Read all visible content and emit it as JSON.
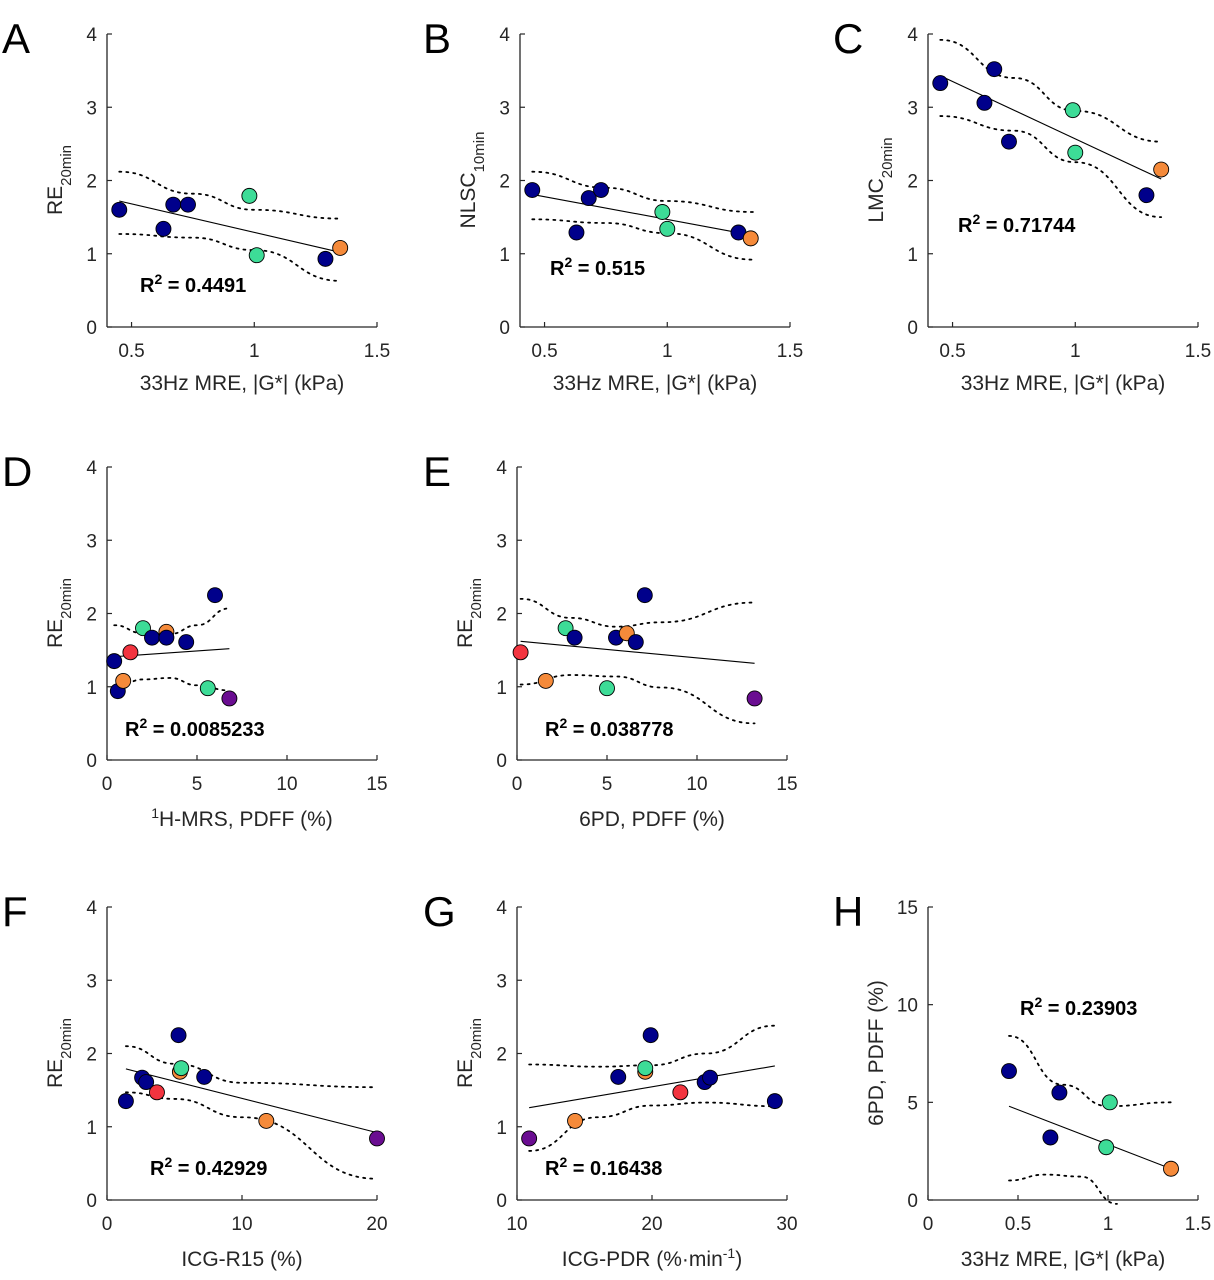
{
  "colors": {
    "blue": "#00008b",
    "green": "#3ddc97",
    "orange": "#f58a3a",
    "red": "#f2343f",
    "purple": "#6a0d91",
    "axis": "#262626",
    "fit": "#000000"
  },
  "chart_data": [
    {
      "type": "scatter",
      "panel": "A",
      "ylabel_main": "RE",
      "ylabel_sub": "20min",
      "xlabel": "33Hz MRE, |G*| (kPa)",
      "xlim": [
        0.4,
        1.5
      ],
      "ylim": [
        0,
        4
      ],
      "xticks": [
        "0.5",
        "1",
        "1.5"
      ],
      "yticks": [
        "0",
        "1",
        "2",
        "3",
        "4"
      ],
      "xtick_values": [
        0.5,
        1,
        1.5
      ],
      "ytick_values": [
        0,
        1,
        2,
        3,
        4
      ],
      "points": [
        {
          "x": 0.45,
          "y": 1.6,
          "c": "blue"
        },
        {
          "x": 0.63,
          "y": 1.34,
          "c": "blue"
        },
        {
          "x": 0.67,
          "y": 1.67,
          "c": "blue"
        },
        {
          "x": 0.73,
          "y": 1.67,
          "c": "blue"
        },
        {
          "x": 0.98,
          "y": 1.79,
          "c": "green"
        },
        {
          "x": 1.01,
          "y": 0.98,
          "c": "green"
        },
        {
          "x": 1.29,
          "y": 0.93,
          "c": "blue"
        },
        {
          "x": 1.35,
          "y": 1.08,
          "c": "orange"
        }
      ],
      "fit": [
        [
          0.45,
          1.72
        ],
        [
          1.35,
          1.02
        ]
      ],
      "ci_upper": [
        [
          0.45,
          2.12
        ],
        [
          0.75,
          1.82
        ],
        [
          1.0,
          1.6
        ],
        [
          1.35,
          1.48
        ]
      ],
      "ci_lower": [
        [
          0.45,
          1.27
        ],
        [
          0.75,
          1.22
        ],
        [
          1.0,
          1.05
        ],
        [
          1.35,
          0.63
        ]
      ],
      "r2_prefix": "R",
      "r2_exp": "2",
      "r2_value": " = 0.4491"
    },
    {
      "type": "scatter",
      "panel": "B",
      "ylabel_main": "NLSC",
      "ylabel_sub": "10min",
      "xlabel": "33Hz MRE, |G*| (kPa)",
      "xlim": [
        0.4,
        1.5
      ],
      "ylim": [
        0,
        4
      ],
      "xticks": [
        "0.5",
        "1",
        "1.5"
      ],
      "yticks": [
        "0",
        "1",
        "2",
        "3",
        "4"
      ],
      "xtick_values": [
        0.5,
        1,
        1.5
      ],
      "ytick_values": [
        0,
        1,
        2,
        3,
        4
      ],
      "points": [
        {
          "x": 0.45,
          "y": 1.87,
          "c": "blue"
        },
        {
          "x": 0.63,
          "y": 1.29,
          "c": "blue"
        },
        {
          "x": 0.68,
          "y": 1.76,
          "c": "blue"
        },
        {
          "x": 0.73,
          "y": 1.87,
          "c": "blue"
        },
        {
          "x": 0.98,
          "y": 1.57,
          "c": "green"
        },
        {
          "x": 1.0,
          "y": 1.34,
          "c": "green"
        },
        {
          "x": 1.29,
          "y": 1.29,
          "c": "blue"
        },
        {
          "x": 1.34,
          "y": 1.21,
          "c": "orange"
        }
      ],
      "fit": [
        [
          0.45,
          1.81
        ],
        [
          1.35,
          1.25
        ]
      ],
      "ci_upper": [
        [
          0.45,
          2.12
        ],
        [
          0.75,
          1.9
        ],
        [
          1.0,
          1.72
        ],
        [
          1.35,
          1.57
        ]
      ],
      "ci_lower": [
        [
          0.45,
          1.47
        ],
        [
          0.75,
          1.42
        ],
        [
          1.0,
          1.28
        ],
        [
          1.35,
          0.92
        ]
      ],
      "r2_prefix": "R",
      "r2_exp": "2",
      "r2_value": " = 0.515"
    },
    {
      "type": "scatter",
      "panel": "C",
      "ylabel_main": "LMC",
      "ylabel_sub": "20min",
      "xlabel": "33Hz MRE, |G*| (kPa)",
      "xlim": [
        0.4,
        1.5
      ],
      "ylim": [
        0,
        4
      ],
      "xticks": [
        "0.5",
        "1",
        "1.5"
      ],
      "yticks": [
        "0",
        "1",
        "2",
        "3",
        "4"
      ],
      "xtick_values": [
        0.5,
        1,
        1.5
      ],
      "ytick_values": [
        0,
        1,
        2,
        3,
        4
      ],
      "points": [
        {
          "x": 0.45,
          "y": 3.33,
          "c": "blue"
        },
        {
          "x": 0.63,
          "y": 3.06,
          "c": "blue"
        },
        {
          "x": 0.67,
          "y": 3.52,
          "c": "blue"
        },
        {
          "x": 0.73,
          "y": 2.53,
          "c": "blue"
        },
        {
          "x": 0.99,
          "y": 2.96,
          "c": "green"
        },
        {
          "x": 1.0,
          "y": 2.38,
          "c": "green"
        },
        {
          "x": 1.29,
          "y": 1.8,
          "c": "blue"
        },
        {
          "x": 1.35,
          "y": 2.15,
          "c": "orange"
        }
      ],
      "fit": [
        [
          0.45,
          3.43
        ],
        [
          1.35,
          2.02
        ]
      ],
      "ci_upper": [
        [
          0.45,
          3.92
        ],
        [
          0.75,
          3.4
        ],
        [
          1.0,
          2.95
        ],
        [
          1.35,
          2.53
        ]
      ],
      "ci_lower": [
        [
          0.45,
          2.88
        ],
        [
          0.75,
          2.68
        ],
        [
          1.0,
          2.25
        ],
        [
          1.35,
          1.5
        ]
      ],
      "r2_prefix": "R",
      "r2_exp": "2",
      "r2_value": " = 0.71744"
    },
    {
      "type": "scatter",
      "panel": "D",
      "ylabel_main": "RE",
      "ylabel_sub": "20min",
      "xlabel_sup": "1",
      "xlabel": "H-MRS, PDFF (%)",
      "xlim": [
        0,
        15
      ],
      "ylim": [
        0,
        4
      ],
      "xticks": [
        "0",
        "5",
        "10",
        "15"
      ],
      "yticks": [
        "0",
        "1",
        "2",
        "3",
        "4"
      ],
      "xtick_values": [
        0,
        5,
        10,
        15
      ],
      "ytick_values": [
        0,
        1,
        2,
        3,
        4
      ],
      "points": [
        {
          "x": 0.4,
          "y": 1.35,
          "c": "blue"
        },
        {
          "x": 0.6,
          "y": 0.94,
          "c": "blue"
        },
        {
          "x": 0.9,
          "y": 1.08,
          "c": "orange"
        },
        {
          "x": 1.3,
          "y": 1.47,
          "c": "red"
        },
        {
          "x": 2.0,
          "y": 1.8,
          "c": "green"
        },
        {
          "x": 2.5,
          "y": 1.67,
          "c": "blue"
        },
        {
          "x": 3.3,
          "y": 1.75,
          "c": "orange"
        },
        {
          "x": 3.3,
          "y": 1.67,
          "c": "blue"
        },
        {
          "x": 4.4,
          "y": 1.61,
          "c": "blue"
        },
        {
          "x": 5.6,
          "y": 0.98,
          "c": "green"
        },
        {
          "x": 6.0,
          "y": 2.25,
          "c": "blue"
        },
        {
          "x": 6.8,
          "y": 0.84,
          "c": "purple"
        }
      ],
      "fit": [
        [
          0.4,
          1.41
        ],
        [
          6.8,
          1.52
        ]
      ],
      "ci_upper": [
        [
          0.4,
          1.84
        ],
        [
          2.0,
          1.73
        ],
        [
          3.5,
          1.72
        ],
        [
          5.0,
          1.84
        ],
        [
          6.8,
          2.07
        ]
      ],
      "ci_lower": [
        [
          0.4,
          0.98
        ],
        [
          2.0,
          1.1
        ],
        [
          3.5,
          1.12
        ],
        [
          5.0,
          1.02
        ],
        [
          6.8,
          0.95
        ]
      ],
      "r2_prefix": "R",
      "r2_exp": "2",
      "r2_value": " = 0.0085233"
    },
    {
      "type": "scatter",
      "panel": "E",
      "ylabel_main": "RE",
      "ylabel_sub": "20min",
      "xlabel": "6PD, PDFF (%)",
      "xlim": [
        0,
        15
      ],
      "ylim": [
        0,
        4
      ],
      "xticks": [
        "0",
        "5",
        "10",
        "15"
      ],
      "yticks": [
        "0",
        "1",
        "2",
        "3",
        "4"
      ],
      "xtick_values": [
        0,
        5,
        10,
        15
      ],
      "ytick_values": [
        0,
        1,
        2,
        3,
        4
      ],
      "points": [
        {
          "x": 0.2,
          "y": 1.47,
          "c": "red"
        },
        {
          "x": 1.6,
          "y": 1.08,
          "c": "orange"
        },
        {
          "x": 2.7,
          "y": 1.8,
          "c": "green"
        },
        {
          "x": 3.2,
          "y": 1.67,
          "c": "blue"
        },
        {
          "x": 5.0,
          "y": 0.98,
          "c": "green"
        },
        {
          "x": 5.5,
          "y": 1.67,
          "c": "blue"
        },
        {
          "x": 6.1,
          "y": 1.73,
          "c": "orange"
        },
        {
          "x": 6.6,
          "y": 1.61,
          "c": "blue"
        },
        {
          "x": 7.1,
          "y": 2.25,
          "c": "blue"
        },
        {
          "x": 13.2,
          "y": 0.84,
          "c": "purple"
        }
      ],
      "fit": [
        [
          0.2,
          1.62
        ],
        [
          13.2,
          1.32
        ]
      ],
      "ci_upper": [
        [
          0.2,
          2.2
        ],
        [
          3.0,
          1.94
        ],
        [
          5.5,
          1.82
        ],
        [
          8.0,
          1.88
        ],
        [
          13.2,
          2.15
        ]
      ],
      "ci_lower": [
        [
          0.2,
          1.03
        ],
        [
          3.0,
          1.16
        ],
        [
          5.5,
          1.14
        ],
        [
          8.0,
          0.99
        ],
        [
          13.2,
          0.5
        ]
      ],
      "r2_prefix": "R",
      "r2_exp": "2",
      "r2_value": " = 0.038778"
    },
    {
      "type": "scatter",
      "panel": "F",
      "ylabel_main": "RE",
      "ylabel_sub": "20min",
      "xlabel": "ICG-R15 (%)",
      "xlim": [
        0,
        20
      ],
      "ylim": [
        0,
        4
      ],
      "xticks": [
        "0",
        "10",
        "20"
      ],
      "yticks": [
        "0",
        "1",
        "2",
        "3",
        "4"
      ],
      "xtick_values": [
        0,
        10,
        20
      ],
      "ytick_values": [
        0,
        1,
        2,
        3,
        4
      ],
      "points": [
        {
          "x": 1.4,
          "y": 1.35,
          "c": "blue"
        },
        {
          "x": 2.6,
          "y": 1.67,
          "c": "blue"
        },
        {
          "x": 2.9,
          "y": 1.61,
          "c": "blue"
        },
        {
          "x": 3.7,
          "y": 1.47,
          "c": "red"
        },
        {
          "x": 5.3,
          "y": 2.25,
          "c": "blue"
        },
        {
          "x": 5.4,
          "y": 1.75,
          "c": "orange"
        },
        {
          "x": 5.5,
          "y": 1.8,
          "c": "green"
        },
        {
          "x": 7.2,
          "y": 1.68,
          "c": "blue"
        },
        {
          "x": 11.8,
          "y": 1.08,
          "c": "orange"
        },
        {
          "x": 20.0,
          "y": 0.84,
          "c": "purple"
        }
      ],
      "fit": [
        [
          1.4,
          1.79
        ],
        [
          20.0,
          0.92
        ]
      ],
      "ci_upper": [
        [
          1.4,
          2.1
        ],
        [
          5.0,
          1.86
        ],
        [
          10.0,
          1.6
        ],
        [
          20.0,
          1.54
        ]
      ],
      "ci_lower": [
        [
          1.4,
          1.47
        ],
        [
          5.0,
          1.38
        ],
        [
          10.0,
          1.13
        ],
        [
          20.0,
          0.29
        ]
      ],
      "r2_prefix": "R",
      "r2_exp": "2",
      "r2_value": " = 0.42929"
    },
    {
      "type": "scatter",
      "panel": "G",
      "ylabel_main": "RE",
      "ylabel_sub": "20min",
      "xlabel": "ICG-PDR (%·min",
      "xlabel_sup": "-1",
      "xlabel_tail": ")",
      "xlim": [
        10,
        30
      ],
      "ylim": [
        0,
        4
      ],
      "xticks": [
        "10",
        "20",
        "30"
      ],
      "yticks": [
        "0",
        "1",
        "2",
        "3",
        "4"
      ],
      "xtick_values": [
        10,
        20,
        30
      ],
      "ytick_values": [
        0,
        1,
        2,
        3,
        4
      ],
      "points": [
        {
          "x": 10.9,
          "y": 0.84,
          "c": "purple"
        },
        {
          "x": 14.3,
          "y": 1.08,
          "c": "orange"
        },
        {
          "x": 17.5,
          "y": 1.68,
          "c": "blue"
        },
        {
          "x": 19.5,
          "y": 1.75,
          "c": "orange"
        },
        {
          "x": 19.5,
          "y": 1.8,
          "c": "green"
        },
        {
          "x": 19.9,
          "y": 2.25,
          "c": "blue"
        },
        {
          "x": 22.1,
          "y": 1.47,
          "c": "red"
        },
        {
          "x": 23.9,
          "y": 1.61,
          "c": "blue"
        },
        {
          "x": 24.3,
          "y": 1.67,
          "c": "blue"
        },
        {
          "x": 29.1,
          "y": 1.35,
          "c": "blue"
        }
      ],
      "fit": [
        [
          10.9,
          1.26
        ],
        [
          29.1,
          1.83
        ]
      ],
      "ci_upper": [
        [
          10.9,
          1.85
        ],
        [
          16.0,
          1.82
        ],
        [
          20.0,
          1.84
        ],
        [
          24.0,
          2.0
        ],
        [
          29.1,
          2.38
        ]
      ],
      "ci_lower": [
        [
          10.9,
          0.67
        ],
        [
          16.0,
          1.13
        ],
        [
          20.0,
          1.29
        ],
        [
          24.0,
          1.33
        ],
        [
          29.1,
          1.28
        ]
      ],
      "r2_prefix": "R",
      "r2_exp": "2",
      "r2_value": " = 0.16438"
    },
    {
      "type": "scatter",
      "panel": "H",
      "ylabel_main": "6PD, PDFF (%)",
      "ylabel_sub": "",
      "xlabel": "33Hz MRE, |G*| (kPa)",
      "xlim": [
        0,
        1.5
      ],
      "ylim": [
        0,
        15
      ],
      "xticks": [
        "0",
        "0.5",
        "1",
        "1.5"
      ],
      "yticks": [
        "0",
        "5",
        "10",
        "15"
      ],
      "xtick_values": [
        0,
        0.5,
        1,
        1.5
      ],
      "ytick_values": [
        0,
        5,
        10,
        15
      ],
      "points": [
        {
          "x": 0.45,
          "y": 6.6,
          "c": "blue"
        },
        {
          "x": 0.68,
          "y": 3.2,
          "c": "blue"
        },
        {
          "x": 0.73,
          "y": 5.5,
          "c": "blue"
        },
        {
          "x": 0.99,
          "y": 2.7,
          "c": "green"
        },
        {
          "x": 1.01,
          "y": 5.0,
          "c": "green"
        },
        {
          "x": 1.35,
          "y": 1.6,
          "c": "orange"
        }
      ],
      "fit": [
        [
          0.45,
          4.8
        ],
        [
          1.35,
          1.6
        ]
      ],
      "ci_upper": [
        [
          0.45,
          8.4
        ],
        [
          0.75,
          5.9
        ],
        [
          1.0,
          4.8
        ],
        [
          1.35,
          5.0
        ]
      ],
      "ci_lower": [
        [
          0.45,
          1.0
        ],
        [
          0.65,
          1.3
        ],
        [
          0.85,
          1.2
        ],
        [
          1.05,
          -0.2
        ]
      ],
      "r2_prefix": "R",
      "r2_exp": "2",
      "r2_value": " = 0.23903"
    }
  ]
}
